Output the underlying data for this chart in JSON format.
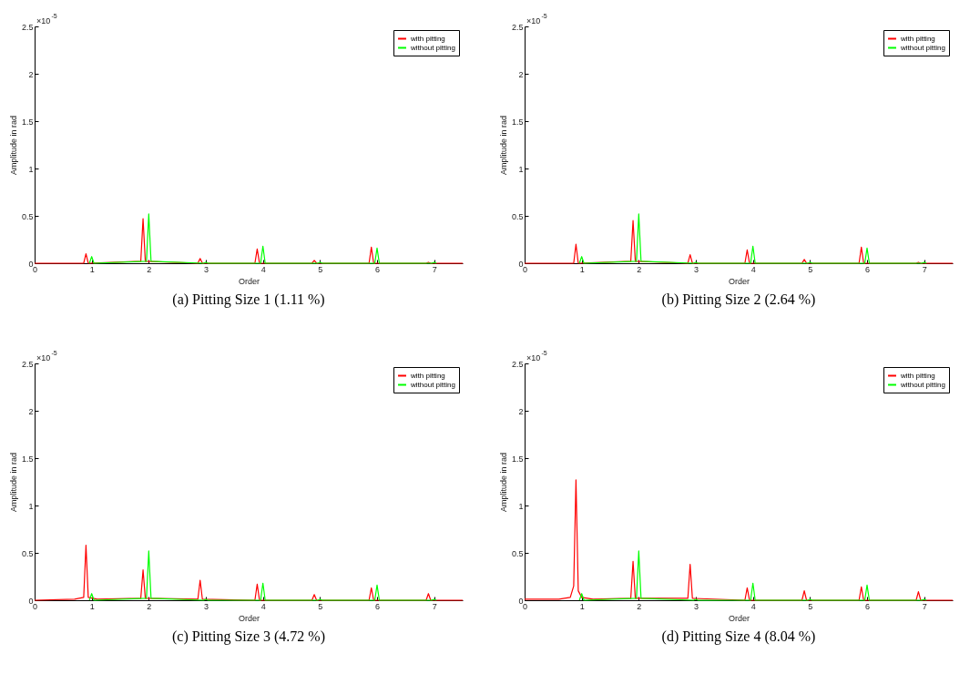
{
  "chart_data": [
    {
      "type": "line",
      "title": "(a) Pitting Size 1 (1.11 %)",
      "xlabel": "Order",
      "ylabel": "Amplitude in rad",
      "annotations": [
        "×10$^{-5}$"
      ],
      "xlim": [
        0,
        7.5
      ],
      "ylim": [
        0,
        2.5
      ],
      "xticks": [
        0,
        1,
        2,
        3,
        4,
        5,
        6,
        7
      ],
      "yticks": [
        0,
        0.5,
        1,
        1.5,
        2,
        2.5
      ],
      "grid": false,
      "legend": "top right",
      "series": [
        {
          "name": "with pitting",
          "color": "#ff0000",
          "x": [
            0,
            0.86,
            0.9,
            0.94,
            1.86,
            1.9,
            1.94,
            2.86,
            2.9,
            2.94,
            3.86,
            3.9,
            3.94,
            4.86,
            4.9,
            4.94,
            5.86,
            5.9,
            5.94,
            6.86,
            6.9,
            6.94,
            7.5
          ],
          "values": [
            0,
            0,
            0.1,
            0,
            0.02,
            0.47,
            0.02,
            0,
            0.05,
            0,
            0,
            0.15,
            0,
            0,
            0.03,
            0,
            0,
            0.17,
            0,
            0,
            0.01,
            0,
            0
          ]
        },
        {
          "name": "without pitting",
          "color": "#00ff00",
          "x": [
            0.96,
            1,
            1.04,
            1.96,
            2,
            2.04,
            2.96,
            3,
            3.04,
            3.96,
            4,
            4.04,
            4.96,
            5,
            5.04,
            5.96,
            6,
            6.04,
            6.96,
            7,
            7.04
          ],
          "values": [
            0,
            0.07,
            0,
            0.02,
            0.52,
            0.02,
            0,
            0.01,
            0,
            0,
            0.18,
            0,
            0,
            0.01,
            0,
            0,
            0.16,
            0,
            0,
            0.01,
            0
          ]
        }
      ]
    },
    {
      "type": "line",
      "title": "(b) Pitting Size 2 (2.64 %)",
      "xlabel": "Order",
      "ylabel": "Amplitude in rad",
      "annotations": [
        "×10$^{-5}$"
      ],
      "xlim": [
        0,
        7.5
      ],
      "ylim": [
        0,
        2.5
      ],
      "xticks": [
        0,
        1,
        2,
        3,
        4,
        5,
        6,
        7
      ],
      "yticks": [
        0,
        0.5,
        1,
        1.5,
        2,
        2.5
      ],
      "grid": false,
      "legend": "top right",
      "series": [
        {
          "name": "with pitting",
          "color": "#ff0000",
          "x": [
            0,
            0.86,
            0.9,
            0.94,
            1.86,
            1.9,
            1.94,
            2.86,
            2.9,
            2.94,
            3.86,
            3.9,
            3.94,
            4.86,
            4.9,
            4.94,
            5.86,
            5.9,
            5.94,
            6.86,
            6.9,
            6.94,
            7.5
          ],
          "values": [
            0,
            0,
            0.2,
            0,
            0.02,
            0.45,
            0.02,
            0,
            0.09,
            0,
            0,
            0.14,
            0,
            0,
            0.04,
            0,
            0,
            0.17,
            0,
            0,
            0.01,
            0,
            0
          ]
        },
        {
          "name": "without pitting",
          "color": "#00ff00",
          "x": [
            0.96,
            1,
            1.04,
            1.96,
            2,
            2.04,
            2.96,
            3,
            3.04,
            3.96,
            4,
            4.04,
            4.96,
            5,
            5.04,
            5.96,
            6,
            6.04,
            6.96,
            7,
            7.04
          ],
          "values": [
            0,
            0.07,
            0,
            0.02,
            0.52,
            0.02,
            0,
            0.01,
            0,
            0,
            0.18,
            0,
            0,
            0.01,
            0,
            0,
            0.16,
            0,
            0,
            0.01,
            0
          ]
        }
      ]
    },
    {
      "type": "line",
      "title": "(c) Pitting Size 3 (4.72 %)",
      "xlabel": "Order",
      "ylabel": "Amplitude in rad",
      "annotations": [
        "×10$^{-5}$"
      ],
      "xlim": [
        0,
        7.5
      ],
      "ylim": [
        0,
        2.5
      ],
      "xticks": [
        0,
        1,
        2,
        3,
        4,
        5,
        6,
        7
      ],
      "yticks": [
        0,
        0.5,
        1,
        1.5,
        2,
        2.5
      ],
      "grid": false,
      "legend": "top right",
      "series": [
        {
          "name": "with pitting",
          "color": "#ff0000",
          "x": [
            0,
            0.7,
            0.86,
            0.9,
            0.94,
            1.1,
            1.86,
            1.9,
            1.94,
            2.86,
            2.9,
            2.94,
            3.86,
            3.9,
            3.94,
            4.86,
            4.9,
            4.94,
            5.86,
            5.9,
            5.94,
            6.86,
            6.9,
            6.94,
            7.5
          ],
          "values": [
            0,
            0.01,
            0.03,
            0.58,
            0.03,
            0.01,
            0.02,
            0.32,
            0.02,
            0.01,
            0.21,
            0.01,
            0,
            0.17,
            0,
            0,
            0.06,
            0,
            0,
            0.13,
            0,
            0,
            0.07,
            0,
            0
          ]
        },
        {
          "name": "without pitting",
          "color": "#00ff00",
          "x": [
            0.96,
            1,
            1.04,
            1.96,
            2,
            2.04,
            2.96,
            3,
            3.04,
            3.96,
            4,
            4.04,
            4.96,
            5,
            5.04,
            5.96,
            6,
            6.04,
            6.96,
            7,
            7.04
          ],
          "values": [
            0,
            0.07,
            0,
            0.02,
            0.52,
            0.02,
            0,
            0.01,
            0,
            0,
            0.18,
            0,
            0,
            0.01,
            0,
            0,
            0.16,
            0,
            0,
            0.01,
            0
          ]
        }
      ]
    },
    {
      "type": "line",
      "title": "(d) Pitting Size 4 (8.04 %)",
      "xlabel": "Order",
      "ylabel": "Amplitude in rad",
      "annotations": [
        "×10$^{-5}$"
      ],
      "xlim": [
        0,
        7.5
      ],
      "ylim": [
        0,
        2.5
      ],
      "xticks": [
        0,
        1,
        2,
        3,
        4,
        5,
        6,
        7
      ],
      "yticks": [
        0,
        0.5,
        1,
        1.5,
        2,
        2.5
      ],
      "grid": false,
      "legend": "top right",
      "series": [
        {
          "name": "with pitting",
          "color": "#ff0000",
          "x": [
            0,
            0.6,
            0.8,
            0.86,
            0.9,
            0.94,
            1.0,
            1.2,
            1.86,
            1.9,
            1.94,
            2.86,
            2.9,
            2.94,
            3.86,
            3.9,
            3.94,
            4.86,
            4.9,
            4.94,
            5.86,
            5.9,
            5.94,
            6.86,
            6.9,
            6.94,
            7.5
          ],
          "values": [
            0.01,
            0.01,
            0.03,
            0.15,
            1.27,
            0.1,
            0.03,
            0.01,
            0.02,
            0.41,
            0.02,
            0.02,
            0.38,
            0.02,
            0,
            0.13,
            0,
            0,
            0.1,
            0,
            0,
            0.14,
            0,
            0,
            0.09,
            0,
            0
          ]
        },
        {
          "name": "without pitting",
          "color": "#00ff00",
          "x": [
            0.96,
            1,
            1.04,
            1.96,
            2,
            2.04,
            2.96,
            3,
            3.04,
            3.96,
            4,
            4.04,
            4.96,
            5,
            5.04,
            5.96,
            6,
            6.04,
            6.96,
            7,
            7.04
          ],
          "values": [
            0,
            0.07,
            0,
            0.02,
            0.52,
            0.02,
            0,
            0.01,
            0,
            0,
            0.18,
            0,
            0,
            0.01,
            0,
            0,
            0.16,
            0,
            0,
            0.01,
            0
          ]
        }
      ]
    }
  ]
}
